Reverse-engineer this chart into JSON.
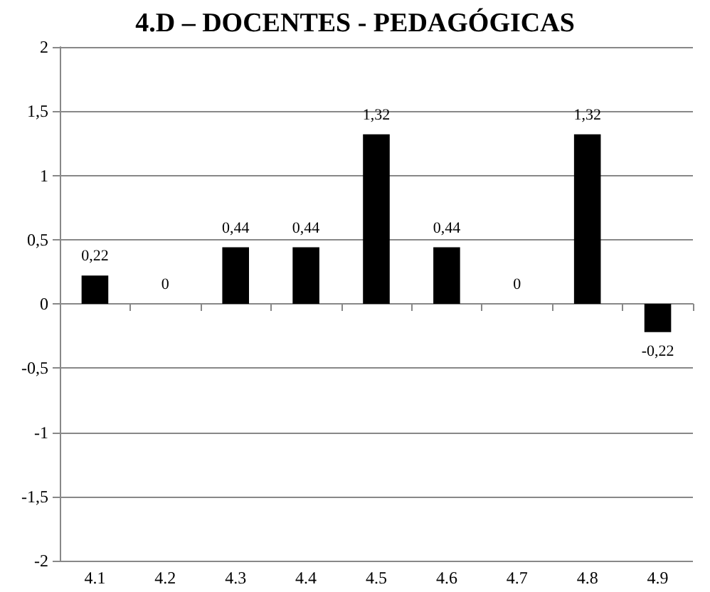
{
  "chart_data": {
    "type": "bar",
    "title": "4.D – DOCENTES - PEDAGÓGICAS",
    "categories": [
      "4.1",
      "4.2",
      "4.3",
      "4.4",
      "4.5",
      "4.6",
      "4.7",
      "4.8",
      "4.9"
    ],
    "values": [
      0.22,
      0,
      0.44,
      0.44,
      1.32,
      0.44,
      0,
      1.32,
      -0.22
    ],
    "value_labels": [
      "0,22",
      "0",
      "0,44",
      "0,44",
      "1,32",
      "0,44",
      "0",
      "1,32",
      "-0,22"
    ],
    "color": "#000000",
    "ylim": [
      -2,
      2
    ],
    "yticks": [
      {
        "value": -2,
        "label": "-2"
      },
      {
        "value": -1.5,
        "label": "-1,5"
      },
      {
        "value": -1,
        "label": "-1"
      },
      {
        "value": -0.5,
        "label": "-0,5"
      },
      {
        "value": 0,
        "label": "0"
      },
      {
        "value": 0.5,
        "label": "0,5"
      },
      {
        "value": 1,
        "label": "1"
      },
      {
        "value": 1.5,
        "label": "1,5"
      },
      {
        "value": 2,
        "label": "2"
      }
    ],
    "grid": "y"
  }
}
